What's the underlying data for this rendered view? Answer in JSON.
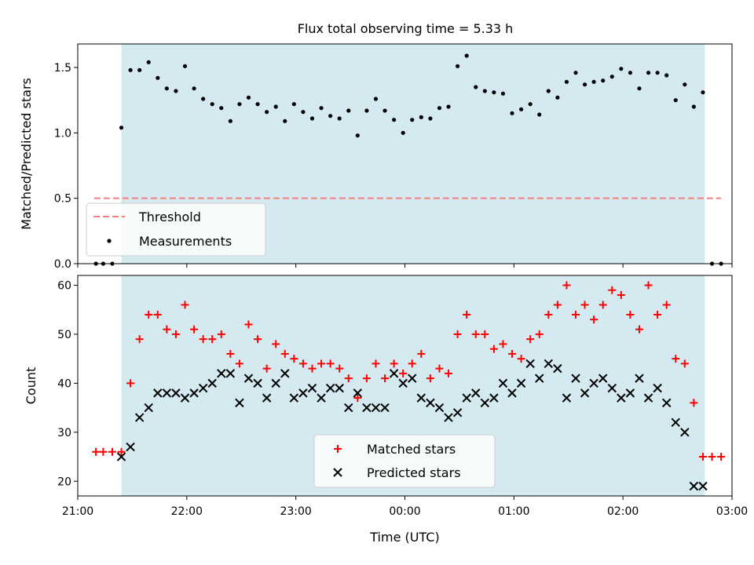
{
  "chart_data": [
    {
      "type": "scatter",
      "title": "Flux total observing time = 5.33 h",
      "xlabel": "",
      "ylabel": "Matched/Predicted stars",
      "xlim": [
        "21:00",
        "03:00"
      ],
      "ylim": [
        0,
        1.68
      ],
      "yticks": [
        "0.0",
        "0.5",
        "1.0",
        "1.5"
      ],
      "shaded_span": [
        "21:24",
        "02:45"
      ],
      "shaded_color": "#d4eaf0",
      "legend": {
        "placement": "lower left",
        "entries": [
          "Threshold",
          "Measurements"
        ]
      },
      "threshold": {
        "name": "Threshold",
        "value": 0.5,
        "x_start": "21:09",
        "x_end": "02:54",
        "color": "#f08080"
      },
      "series": [
        {
          "name": "Measurements",
          "marker": "dot",
          "color": "#000000",
          "x": [
            "21:10",
            "21:14",
            "21:19",
            "21:24",
            "21:29",
            "21:34",
            "21:39",
            "21:44",
            "21:49",
            "21:54",
            "21:59",
            "22:04",
            "22:09",
            "22:14",
            "22:19",
            "22:24",
            "22:29",
            "22:34",
            "22:39",
            "22:44",
            "22:49",
            "22:54",
            "22:59",
            "23:04",
            "23:09",
            "23:14",
            "23:19",
            "23:24",
            "23:29",
            "23:34",
            "23:39",
            "23:44",
            "23:49",
            "23:54",
            "23:59",
            "00:04",
            "00:09",
            "00:14",
            "00:19",
            "00:24",
            "00:29",
            "00:34",
            "00:39",
            "00:44",
            "00:49",
            "00:54",
            "00:59",
            "01:04",
            "01:09",
            "01:14",
            "01:19",
            "01:24",
            "01:29",
            "01:34",
            "01:39",
            "01:44",
            "01:49",
            "01:54",
            "01:59",
            "02:04",
            "02:09",
            "02:14",
            "02:19",
            "02:24",
            "02:29",
            "02:34",
            "02:39",
            "02:44",
            "02:49",
            "02:54"
          ],
          "values": [
            0,
            0,
            0,
            1.04,
            1.48,
            1.48,
            1.54,
            1.42,
            1.34,
            1.32,
            1.51,
            1.34,
            1.26,
            1.22,
            1.19,
            1.09,
            1.22,
            1.27,
            1.22,
            1.16,
            1.2,
            1.09,
            1.22,
            1.16,
            1.11,
            1.19,
            1.13,
            1.11,
            1.17,
            0.98,
            1.17,
            1.26,
            1.17,
            1.1,
            1.0,
            1.1,
            1.12,
            1.11,
            1.19,
            1.2,
            1.51,
            1.59,
            1.35,
            1.32,
            1.31,
            1.3,
            1.15,
            1.18,
            1.22,
            1.14,
            1.32,
            1.27,
            1.39,
            1.46,
            1.37,
            1.39,
            1.4,
            1.43,
            1.49,
            1.46,
            1.34,
            1.46,
            1.46,
            1.44,
            1.25,
            1.37,
            1.2,
            1.31,
            0,
            0
          ]
        }
      ]
    },
    {
      "type": "scatter",
      "title": "",
      "xlabel": "Time (UTC)",
      "ylabel": "Count",
      "xlim": [
        "21:00",
        "03:00"
      ],
      "ylim": [
        17,
        62
      ],
      "yticks": [
        "20",
        "30",
        "40",
        "50",
        "60"
      ],
      "xticks": [
        "21:00",
        "22:00",
        "23:00",
        "00:00",
        "01:00",
        "02:00",
        "03:00"
      ],
      "shaded_span": [
        "21:24",
        "02:45"
      ],
      "shaded_color": "#d4eaf0",
      "legend": {
        "placement": "lower center",
        "entries": [
          "Matched stars",
          "Predicted stars"
        ]
      },
      "series": [
        {
          "name": "Matched stars",
          "marker": "plus",
          "color": "#ff0000",
          "x": [
            "21:10",
            "21:14",
            "21:19",
            "21:24",
            "21:29",
            "21:34",
            "21:39",
            "21:44",
            "21:49",
            "21:54",
            "21:59",
            "22:04",
            "22:09",
            "22:14",
            "22:19",
            "22:24",
            "22:29",
            "22:34",
            "22:39",
            "22:44",
            "22:49",
            "22:54",
            "22:59",
            "23:04",
            "23:09",
            "23:14",
            "23:19",
            "23:24",
            "23:29",
            "23:34",
            "23:39",
            "23:44",
            "23:49",
            "23:54",
            "23:59",
            "00:04",
            "00:09",
            "00:14",
            "00:19",
            "00:24",
            "00:29",
            "00:34",
            "00:39",
            "00:44",
            "00:49",
            "00:54",
            "00:59",
            "01:04",
            "01:09",
            "01:14",
            "01:19",
            "01:24",
            "01:29",
            "01:34",
            "01:39",
            "01:44",
            "01:49",
            "01:54",
            "01:59",
            "02:04",
            "02:09",
            "02:14",
            "02:19",
            "02:24",
            "02:29",
            "02:34",
            "02:39",
            "02:44",
            "02:49",
            "02:54"
          ],
          "values": [
            26,
            26,
            26,
            26,
            40,
            49,
            54,
            54,
            51,
            50,
            56,
            51,
            49,
            49,
            50,
            46,
            44,
            52,
            49,
            43,
            48,
            46,
            45,
            44,
            43,
            44,
            44,
            43,
            41,
            37,
            41,
            44,
            41,
            44,
            42,
            44,
            46,
            41,
            43,
            42,
            50,
            54,
            50,
            50,
            47,
            48,
            46,
            45,
            49,
            50,
            54,
            56,
            60,
            54,
            56,
            53,
            56,
            59,
            58,
            54,
            51,
            60,
            54,
            56,
            45,
            44,
            36,
            25,
            25,
            25
          ]
        },
        {
          "name": "Predicted stars",
          "marker": "x",
          "color": "#000000",
          "x": [
            "21:24",
            "21:29",
            "21:34",
            "21:39",
            "21:44",
            "21:49",
            "21:54",
            "21:59",
            "22:04",
            "22:09",
            "22:14",
            "22:19",
            "22:24",
            "22:29",
            "22:34",
            "22:39",
            "22:44",
            "22:49",
            "22:54",
            "22:59",
            "23:04",
            "23:09",
            "23:14",
            "23:19",
            "23:24",
            "23:29",
            "23:34",
            "23:39",
            "23:44",
            "23:49",
            "23:54",
            "23:59",
            "00:04",
            "00:09",
            "00:14",
            "00:19",
            "00:24",
            "00:29",
            "00:34",
            "00:39",
            "00:44",
            "00:49",
            "00:54",
            "00:59",
            "01:04",
            "01:09",
            "01:14",
            "01:19",
            "01:24",
            "01:29",
            "01:34",
            "01:39",
            "01:44",
            "01:49",
            "01:54",
            "01:59",
            "02:04",
            "02:09",
            "02:14",
            "02:19",
            "02:24",
            "02:29",
            "02:34",
            "02:39",
            "02:44"
          ],
          "values": [
            25,
            27,
            33,
            35,
            38,
            38,
            38,
            37,
            38,
            39,
            40,
            42,
            42,
            36,
            41,
            40,
            37,
            40,
            42,
            37,
            38,
            39,
            37,
            39,
            39,
            35,
            38,
            35,
            35,
            35,
            42,
            40,
            41,
            37,
            36,
            35,
            33,
            34,
            37,
            38,
            36,
            37,
            40,
            38,
            40,
            44,
            41,
            44,
            43,
            37,
            41,
            38,
            40,
            41,
            39,
            37,
            38,
            41,
            37,
            39,
            36,
            32,
            30,
            19,
            19
          ]
        }
      ]
    }
  ]
}
